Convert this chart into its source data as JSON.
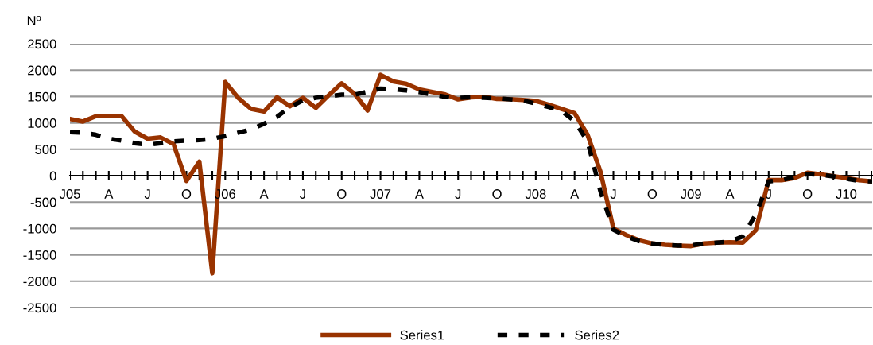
{
  "chart_data": {
    "type": "line",
    "ylabel": "Nº",
    "categories": [
      "J05",
      null,
      null,
      "A",
      null,
      null,
      "J",
      null,
      null,
      "O",
      null,
      null,
      "J06",
      null,
      null,
      "A",
      null,
      null,
      "J",
      null,
      null,
      "O",
      null,
      null,
      "J07",
      null,
      null,
      "A",
      null,
      null,
      "J",
      null,
      null,
      "O",
      null,
      null,
      "J08",
      null,
      null,
      "A",
      null,
      null,
      "J",
      null,
      null,
      "O",
      null,
      null,
      "J09",
      null,
      null,
      "A",
      null,
      null,
      "J",
      null,
      null,
      "O",
      null,
      null,
      "J10",
      null,
      null
    ],
    "series": [
      {
        "name": "Series1",
        "color": "#993300",
        "line_style": "solid",
        "values": [
          1075,
          1025,
          1125,
          1125,
          1125,
          835,
          700,
          725,
          600,
          -100,
          265,
          -1850,
          1775,
          1475,
          1265,
          1215,
          1485,
          1315,
          1475,
          1285,
          1525,
          1750,
          1550,
          1235,
          1910,
          1785,
          1740,
          1635,
          1585,
          1540,
          1445,
          1485,
          1495,
          1455,
          1450,
          1435,
          1415,
          1345,
          1265,
          1185,
          775,
          75,
          -1000,
          -1125,
          -1225,
          -1285,
          -1310,
          -1325,
          -1335,
          -1285,
          -1270,
          -1260,
          -1270,
          -1035,
          -85,
          -85,
          -45,
          55,
          25,
          -10,
          -45,
          -85,
          -110
        ]
      },
      {
        "name": "Series2",
        "color": "#000000",
        "line_style": "dashed",
        "values": [
          825,
          815,
          775,
          700,
          665,
          615,
          585,
          615,
          650,
          665,
          675,
          700,
          750,
          815,
          875,
          985,
          1115,
          1300,
          1425,
          1475,
          1500,
          1535,
          1535,
          1590,
          1650,
          1635,
          1615,
          1585,
          1535,
          1495,
          1475,
          1485,
          1475,
          1465,
          1445,
          1425,
          1365,
          1300,
          1225,
          1035,
          650,
          -300,
          -1025,
          -1150,
          -1240,
          -1285,
          -1310,
          -1325,
          -1320,
          -1290,
          -1270,
          -1250,
          -1150,
          -735,
          -110,
          -85,
          -25,
          30,
          15,
          -15,
          -60,
          -100,
          -110
        ]
      }
    ],
    "ylim": [
      -2500,
      2500
    ],
    "yticks": [
      -2500,
      -2000,
      -1500,
      -1000,
      -500,
      0,
      500,
      1000,
      1500,
      2000,
      2500
    ],
    "grid": "y",
    "legend": "bottom",
    "marker": "none"
  }
}
